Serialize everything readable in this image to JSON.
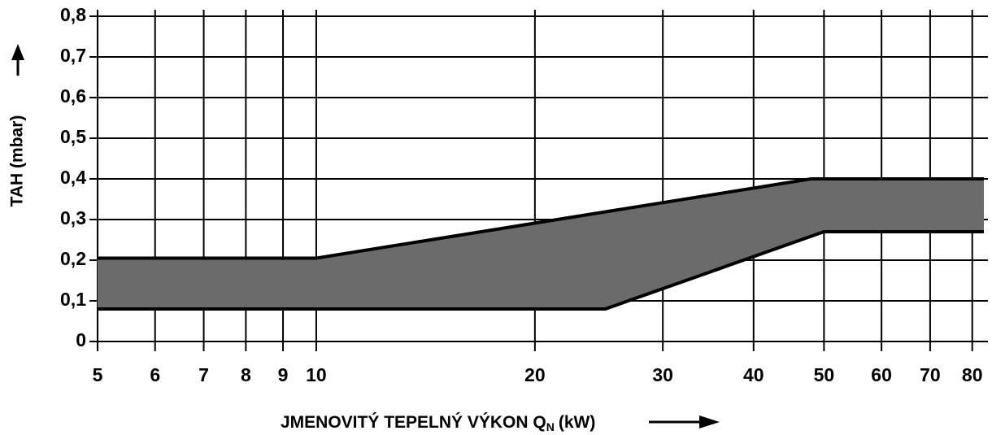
{
  "chart_data": {
    "type": "band",
    "y_label": "TAH (mbar)",
    "x_label": {
      "main": "JMENOVITÝ TEPELNÝ VÝKON Q",
      "subscript": "N",
      "unit": "(kW)"
    },
    "log_x": true,
    "grid": true,
    "fill": "#6b6b6b",
    "series": [
      {
        "color": "#000000",
        "x": [
          5,
          10,
          48,
          83
        ],
        "values": [
          0.205,
          0.205,
          0.4,
          0.4
        ]
      },
      {
        "color": "#000000",
        "x": [
          5,
          25,
          50,
          83
        ],
        "values": [
          0.08,
          0.08,
          0.27,
          0.27
        ]
      }
    ],
    "xlim": [
      5,
      83
    ],
    "xticks": [
      5,
      6,
      7,
      8,
      9,
      10,
      20,
      30,
      40,
      50,
      60,
      70,
      80
    ],
    "ylim": [
      0,
      0.8
    ],
    "yticks": [
      0,
      {
        "value": 0.1,
        "label": "0,1"
      },
      {
        "value": 0.2,
        "label": "0,2"
      },
      {
        "value": 0.3,
        "label": "0,3"
      },
      {
        "value": 0.4,
        "label": "0,4"
      },
      {
        "value": 0.5,
        "label": "0,5"
      },
      {
        "value": 0.6,
        "label": "0,6"
      },
      {
        "value": 0.7,
        "label": "0,7"
      },
      {
        "value": 0.8,
        "label": "0,8"
      }
    ]
  }
}
